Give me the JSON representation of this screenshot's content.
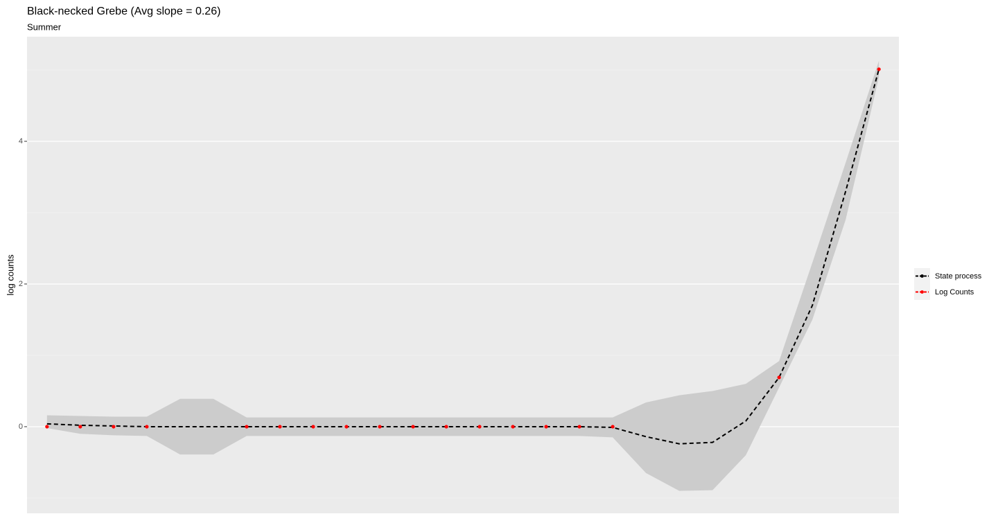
{
  "chart_data": {
    "type": "line",
    "title": "Black-necked Grebe (Avg slope = 0.26)",
    "subtitle": "Summer",
    "y_label": "log counts",
    "categories": [
      null,
      null,
      null,
      null,
      null,
      null,
      null,
      null,
      null,
      null,
      null,
      null,
      null,
      null,
      null,
      null,
      null,
      null,
      null,
      null,
      null,
      null,
      null,
      null,
      null,
      null
    ],
    "series": [
      {
        "name": "State process",
        "color": "#000000",
        "dashed": true,
        "values": [
          0.04,
          0.02,
          0.01,
          0,
          0,
          0,
          0,
          0,
          0,
          0,
          0,
          0,
          0,
          0,
          0,
          0,
          0,
          -0.01,
          -0.14,
          -0.24,
          -0.22,
          0.08,
          0.69,
          1.7,
          3.3,
          5.01
        ],
        "ribbon": {
          "color": "#cccccc",
          "upper": [
            0.16,
            0.15,
            0.14,
            0.14,
            0.39,
            0.39,
            0.13,
            0.13,
            0.13,
            0.13,
            0.13,
            0.13,
            0.13,
            0.13,
            0.13,
            0.13,
            0.13,
            0.13,
            0.34,
            0.44,
            0.5,
            0.6,
            0.92,
            2.3,
            3.7,
            5.13
          ],
          "lower": [
            -0.02,
            -0.1,
            -0.12,
            -0.13,
            -0.39,
            -0.39,
            -0.13,
            -0.13,
            -0.13,
            -0.13,
            -0.13,
            -0.13,
            -0.13,
            -0.13,
            -0.13,
            -0.13,
            -0.13,
            -0.15,
            -0.65,
            -0.9,
            -0.89,
            -0.4,
            0.55,
            1.5,
            2.9,
            4.9
          ]
        }
      },
      {
        "name": "Log Counts",
        "color": "#ff0000",
        "points_only": true,
        "values": [
          0,
          0,
          0,
          0,
          null,
          null,
          0,
          0,
          0,
          0,
          0,
          0,
          0,
          0,
          0,
          0,
          0,
          0,
          null,
          null,
          null,
          null,
          0.69,
          null,
          null,
          5.01
        ]
      }
    ],
    "ylim": [
      -1.214,
      5.466
    ],
    "yticks": [
      0,
      2,
      4
    ],
    "minor_yticks": [
      -1,
      1,
      3,
      5
    ],
    "grid": true,
    "legend": "right"
  }
}
